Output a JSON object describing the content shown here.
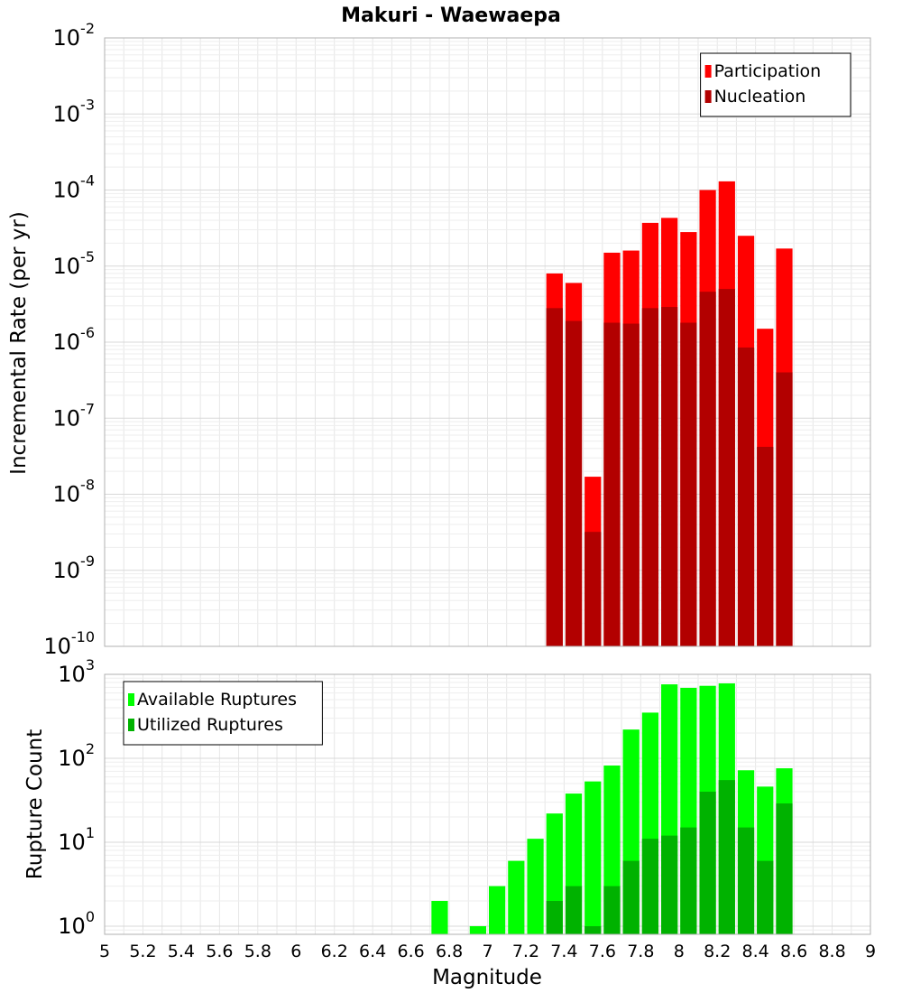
{
  "chart_data": [
    {
      "type": "bar",
      "title": "Makuri - Waewaepa",
      "xlabel": "",
      "ylabel": "Incremental Rate (per yr)",
      "yscale": "log",
      "ylim": [
        1e-10,
        0.01
      ],
      "xlim": [
        5,
        9
      ],
      "grid": true,
      "legend_position": "top-right",
      "x": [
        7.35,
        7.45,
        7.55,
        7.65,
        7.75,
        7.85,
        7.95,
        8.05,
        8.15,
        8.25,
        8.35,
        8.45,
        8.55
      ],
      "y_tick_labels": [
        {
          "base": "10",
          "exp": "-10",
          "value": 1e-10
        },
        {
          "base": "10",
          "exp": "-9",
          "value": 1e-09
        },
        {
          "base": "10",
          "exp": "-8",
          "value": 1e-08
        },
        {
          "base": "10",
          "exp": "-7",
          "value": 1e-07
        },
        {
          "base": "10",
          "exp": "-6",
          "value": 1e-06
        },
        {
          "base": "10",
          "exp": "-5",
          "value": 1e-05
        },
        {
          "base": "10",
          "exp": "-4",
          "value": 0.0001
        },
        {
          "base": "10",
          "exp": "-3",
          "value": 0.001
        },
        {
          "base": "10",
          "exp": "-2",
          "value": 0.01
        }
      ],
      "series": [
        {
          "name": "Participation",
          "color": "#ff0000",
          "values": [
            8e-06,
            6e-06,
            1.7e-08,
            1.5e-05,
            1.6e-05,
            3.7e-05,
            4.3e-05,
            2.8e-05,
            0.0001,
            0.00013,
            2.5e-05,
            1.5e-06,
            1.7e-05
          ]
        },
        {
          "name": "Nucleation",
          "color": "#b20000",
          "values": [
            2.8e-06,
            1.9e-06,
            3.2e-09,
            1.8e-06,
            1.75e-06,
            2.8e-06,
            2.9e-06,
            1.8e-06,
            4.6e-06,
            5e-06,
            8.5e-07,
            4.2e-08,
            4e-07
          ]
        }
      ]
    },
    {
      "type": "bar",
      "title": "",
      "xlabel": "Magnitude",
      "ylabel": "Rupture Count",
      "yscale": "log",
      "ylim": [
        0.8,
        1000
      ],
      "xlim": [
        5,
        9
      ],
      "grid": true,
      "legend_position": "top-left",
      "x": [
        6.75,
        6.95,
        7.05,
        7.15,
        7.25,
        7.35,
        7.45,
        7.55,
        7.65,
        7.75,
        7.85,
        7.95,
        8.05,
        8.15,
        8.25,
        8.35,
        8.45,
        8.55
      ],
      "x_ticks": [
        "5",
        "5.2",
        "5.4",
        "5.6",
        "5.8",
        "6",
        "6.2",
        "6.4",
        "6.6",
        "6.8",
        "7",
        "7.2",
        "7.4",
        "7.6",
        "7.8",
        "8",
        "8.2",
        "8.4",
        "8.6",
        "8.8",
        "9"
      ],
      "y_tick_labels": [
        {
          "base": "10",
          "exp": "0",
          "value": 1
        },
        {
          "base": "10",
          "exp": "1",
          "value": 10
        },
        {
          "base": "10",
          "exp": "2",
          "value": 100
        },
        {
          "base": "10",
          "exp": "3",
          "value": 1000
        }
      ],
      "series": [
        {
          "name": "Available Ruptures",
          "color": "#00ff00",
          "values": [
            2,
            1,
            3,
            6,
            11,
            22,
            38,
            53,
            82,
            220,
            350,
            760,
            690,
            730,
            780,
            72,
            46,
            76
          ]
        },
        {
          "name": "Utilized Ruptures",
          "color": "#00b200",
          "values": [
            null,
            null,
            null,
            null,
            null,
            2,
            3,
            1,
            3,
            6,
            11,
            12,
            15,
            40,
            55,
            15,
            6,
            29
          ]
        }
      ]
    }
  ]
}
